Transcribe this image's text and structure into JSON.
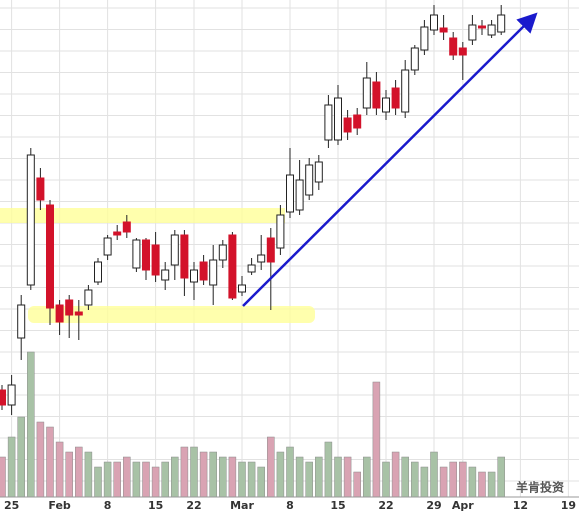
{
  "chart_data": {
    "type": "candlestick",
    "categories": [
      null,
      "25",
      null,
      null,
      null,
      null,
      "Feb",
      null,
      null,
      null,
      null,
      "8",
      null,
      null,
      null,
      null,
      "15",
      null,
      null,
      null,
      "22",
      null,
      null,
      null,
      null,
      "Mar",
      null,
      null,
      null,
      null,
      "8",
      null,
      null,
      null,
      null,
      "15",
      null,
      null,
      null,
      null,
      "22",
      null,
      null,
      null,
      null,
      "29",
      null,
      null,
      "Apr",
      null,
      null,
      null,
      null,
      null,
      "12",
      null,
      null,
      null,
      null,
      "19"
    ],
    "open": [
      30,
      15,
      82,
      135,
      242,
      215,
      115,
      120,
      108,
      115,
      138,
      165,
      188,
      198,
      152,
      180,
      175,
      140,
      155,
      185,
      138,
      158,
      135,
      160,
      185,
      128,
      148,
      158,
      182,
      172,
      208,
      210,
      225,
      238,
      280,
      280,
      302,
      305,
      312,
      338,
      308,
      332,
      308,
      350,
      370,
      390,
      392,
      382,
      372,
      380,
      394,
      385,
      388,
      null,
      null,
      null,
      null,
      null,
      null,
      null
    ],
    "high": [
      35,
      45,
      125,
      272,
      252,
      220,
      120,
      125,
      120,
      135,
      162,
      185,
      195,
      205,
      182,
      182,
      188,
      158,
      190,
      190,
      158,
      165,
      175,
      180,
      188,
      144,
      162,
      185,
      192,
      215,
      272,
      260,
      262,
      265,
      325,
      335,
      310,
      312,
      358,
      348,
      330,
      340,
      360,
      375,
      400,
      415,
      405,
      388,
      378,
      405,
      400,
      400,
      415,
      null,
      null,
      null,
      null,
      null,
      null,
      null
    ],
    "low": [
      10,
      5,
      60,
      130,
      210,
      95,
      85,
      82,
      80,
      110,
      135,
      160,
      180,
      182,
      148,
      140,
      138,
      130,
      140,
      124,
      120,
      135,
      115,
      152,
      120,
      124,
      145,
      150,
      110,
      165,
      202,
      205,
      220,
      230,
      272,
      275,
      280,
      285,
      305,
      305,
      300,
      305,
      302,
      345,
      365,
      385,
      380,
      360,
      340,
      375,
      385,
      382,
      385,
      null,
      null,
      null,
      null,
      null,
      null,
      null
    ],
    "close": [
      15,
      35,
      115,
      265,
      220,
      112,
      98,
      105,
      105,
      130,
      158,
      182,
      185,
      188,
      180,
      150,
      145,
      150,
      185,
      142,
      150,
      140,
      160,
      175,
      122,
      135,
      155,
      165,
      158,
      205,
      245,
      240,
      255,
      258,
      315,
      322,
      288,
      292,
      342,
      312,
      322,
      312,
      350,
      372,
      393,
      405,
      388,
      365,
      365,
      395,
      392,
      395,
      405,
      null,
      null,
      null,
      null,
      null,
      null,
      null
    ],
    "volume": [
      40,
      60,
      80,
      145,
      75,
      70,
      55,
      45,
      50,
      45,
      30,
      35,
      35,
      40,
      35,
      35,
      30,
      35,
      40,
      50,
      50,
      45,
      45,
      40,
      40,
      35,
      35,
      30,
      60,
      45,
      50,
      40,
      35,
      40,
      55,
      40,
      40,
      25,
      40,
      115,
      35,
      45,
      40,
      35,
      30,
      45,
      30,
      35,
      35,
      30,
      25,
      25,
      40,
      null,
      null,
      null,
      null,
      null,
      null,
      null
    ],
    "ylim": [
      0,
      420
    ],
    "volume_ylim": [
      0,
      120
    ],
    "up_color": "#ffffff",
    "down_color": "#d3122a",
    "volume_up_color": "#a8c2a6",
    "volume_down_color": "#d9a3b3",
    "watermark": "羊肯投资"
  }
}
